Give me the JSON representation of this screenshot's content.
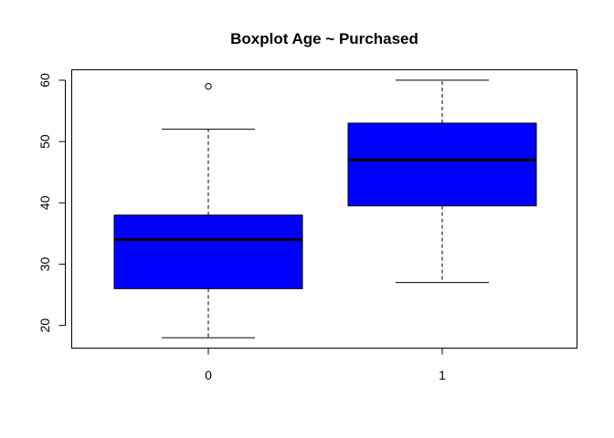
{
  "chart_data": {
    "type": "boxplot",
    "title": "Boxplot Age ~ Purchased",
    "xlabel": "",
    "ylabel": "",
    "categories": [
      "0",
      "1"
    ],
    "boxes": [
      {
        "category": "0",
        "whisker_low": 18,
        "q1": 26,
        "median": 34,
        "q3": 38,
        "whisker_high": 52,
        "outliers": [
          59
        ]
      },
      {
        "category": "1",
        "whisker_low": 27,
        "q1": 39.5,
        "median": 47,
        "q3": 53,
        "whisker_high": 60,
        "outliers": []
      }
    ],
    "yticks": [
      20,
      30,
      40,
      50,
      60
    ],
    "ylim": [
      16.3,
      61.7
    ],
    "fill_color": "#0000ff",
    "grid": false,
    "legend": "none"
  }
}
